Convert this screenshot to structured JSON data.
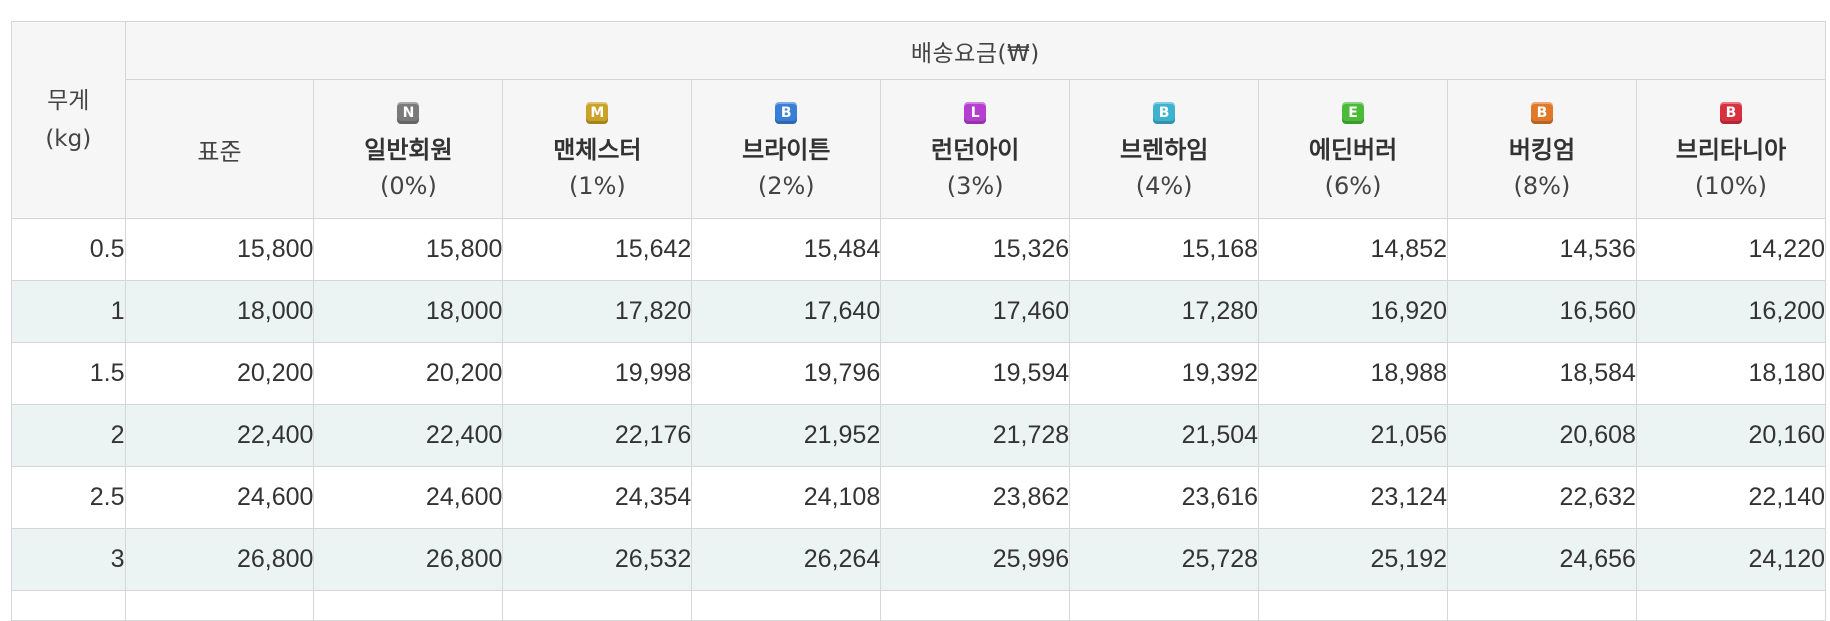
{
  "table": {
    "weight_header": [
      "무게",
      "(kg)"
    ],
    "group_header": "배송요금(₩)",
    "standard_header": "표준",
    "tiers": [
      {
        "badge": "N",
        "color": "#7a7a7a",
        "name": "일반회원",
        "rate": "(0%)"
      },
      {
        "badge": "M",
        "color": "#c9a227",
        "name": "맨체스터",
        "rate": "(1%)"
      },
      {
        "badge": "B",
        "color": "#3a7fd6",
        "name": "브라이튼",
        "rate": "(2%)"
      },
      {
        "badge": "L",
        "color": "#b53fd0",
        "name": "런던아이",
        "rate": "(3%)"
      },
      {
        "badge": "B",
        "color": "#3db3cf",
        "name": "브렌하임",
        "rate": "(4%)"
      },
      {
        "badge": "E",
        "color": "#4cbb3a",
        "name": "에딘버러",
        "rate": "(6%)"
      },
      {
        "badge": "B",
        "color": "#e07a2a",
        "name": "버킹엄",
        "rate": "(8%)"
      },
      {
        "badge": "B",
        "color": "#d7303f",
        "name": "브리타니아",
        "rate": "(10%)"
      }
    ],
    "rows": [
      [
        "0.5",
        "15,800",
        "15,800",
        "15,642",
        "15,484",
        "15,326",
        "15,168",
        "14,852",
        "14,536",
        "14,220"
      ],
      [
        "1",
        "18,000",
        "18,000",
        "17,820",
        "17,640",
        "17,460",
        "17,280",
        "16,920",
        "16,560",
        "16,200"
      ],
      [
        "1.5",
        "20,200",
        "20,200",
        "19,998",
        "19,796",
        "19,594",
        "19,392",
        "18,988",
        "18,584",
        "18,180"
      ],
      [
        "2",
        "22,400",
        "22,400",
        "22,176",
        "21,952",
        "21,728",
        "21,504",
        "21,056",
        "20,608",
        "20,160"
      ],
      [
        "2.5",
        "24,600",
        "24,600",
        "24,354",
        "24,108",
        "23,862",
        "23,616",
        "23,124",
        "22,632",
        "22,140"
      ],
      [
        "3",
        "26,800",
        "26,800",
        "26,532",
        "26,264",
        "25,996",
        "25,728",
        "25,192",
        "24,656",
        "24,120"
      ]
    ]
  }
}
